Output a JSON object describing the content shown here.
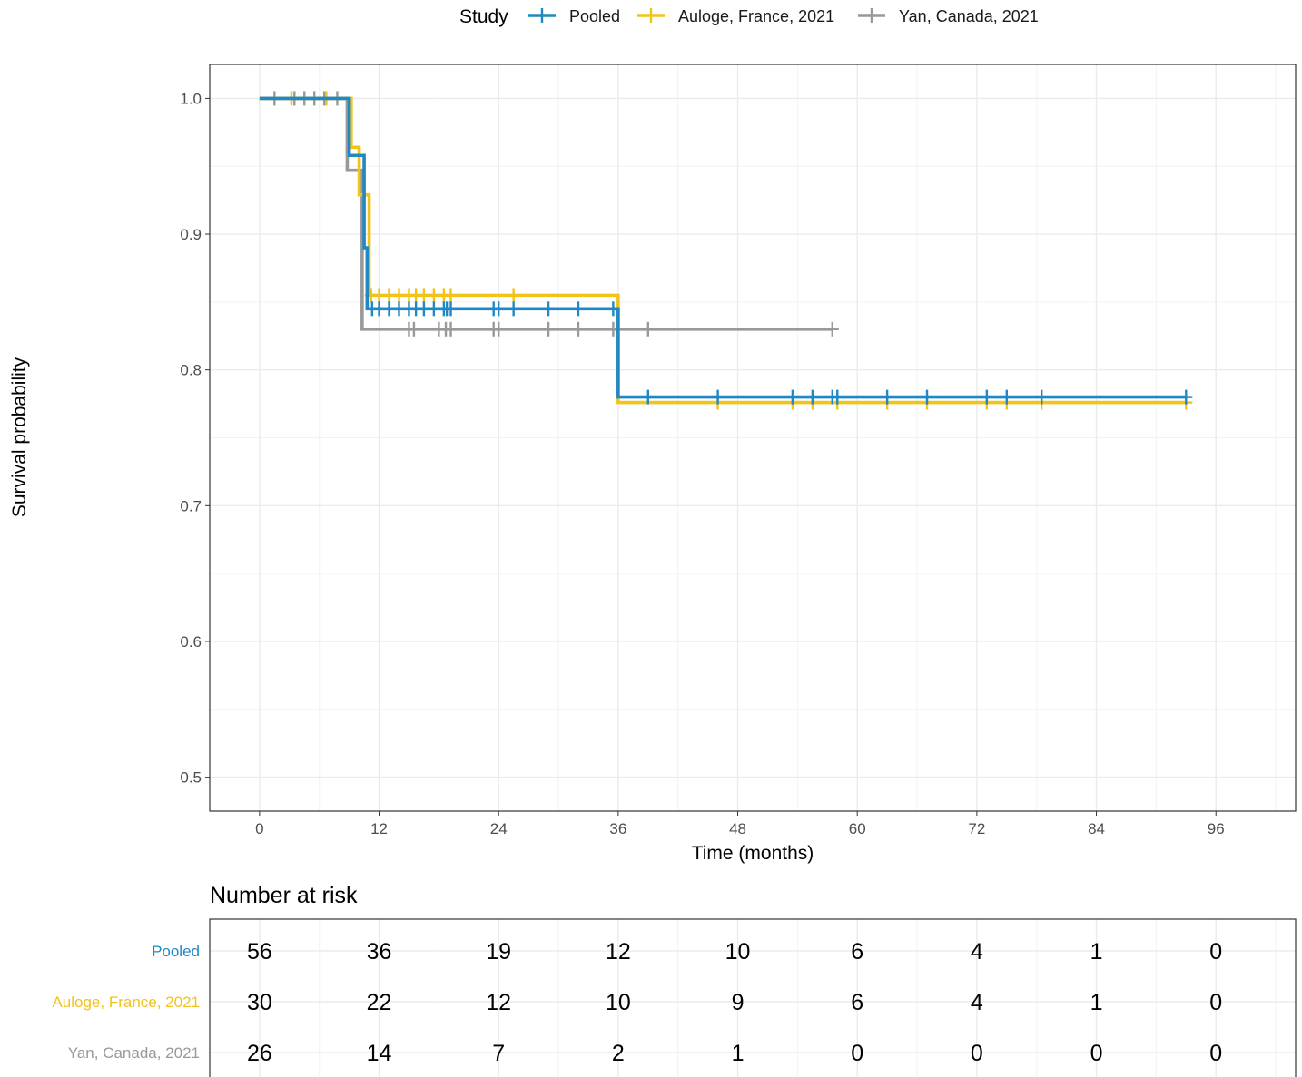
{
  "chart_data": {
    "type": "line",
    "subtype": "kaplan-meier",
    "title": "",
    "xlabel": "Time (months)",
    "ylabel": "Survival probability",
    "xlim": [
      -5,
      104
    ],
    "ylim": [
      0.475,
      1.025
    ],
    "x_ticks": [
      0,
      12,
      24,
      36,
      48,
      60,
      72,
      84,
      96
    ],
    "y_ticks": [
      0.5,
      0.6,
      0.7,
      0.8,
      0.9,
      1.0
    ],
    "y_tick_labels": [
      "0.5",
      "0.6",
      "0.7",
      "0.8",
      "0.9",
      "1.0"
    ],
    "grid": true,
    "legend": {
      "title": "Study",
      "position": "top"
    },
    "series": [
      {
        "name": "Pooled",
        "color": "#1f88c5",
        "steps": [
          [
            0,
            1.0
          ],
          [
            9.0,
            0.958
          ],
          [
            10.5,
            0.89
          ],
          [
            10.8,
            0.845
          ],
          [
            36,
            0.78
          ],
          [
            93,
            0.78
          ]
        ],
        "censor_times": [
          11.3,
          12,
          13,
          14,
          15,
          15.7,
          16.5,
          17.5,
          18.5,
          18.8,
          19.2,
          23.5,
          24,
          25.5,
          29,
          32,
          35.5,
          39,
          46,
          53.5,
          55.5,
          57.5,
          58,
          63,
          67,
          73,
          75,
          78.5,
          93
        ]
      },
      {
        "name": "Auloge, France, 2021",
        "color": "#f2c318",
        "steps": [
          [
            0,
            1.0
          ],
          [
            9.2,
            0.964
          ],
          [
            10.0,
            0.929
          ],
          [
            11.0,
            0.855
          ],
          [
            36,
            0.776
          ],
          [
            93,
            0.776
          ]
        ],
        "censor_times": [
          3.2,
          6.7,
          11.2,
          12,
          13,
          14,
          15,
          15.7,
          16.5,
          17.5,
          18.5,
          19.2,
          25.5,
          46,
          53.5,
          55.5,
          58,
          63,
          67,
          73,
          75,
          78.5,
          93
        ]
      },
      {
        "name": "Yan, Canada, 2021",
        "color": "#999999",
        "steps": [
          [
            0,
            1.0
          ],
          [
            8.8,
            0.947
          ],
          [
            10.3,
            0.83
          ],
          [
            57.5,
            0.83
          ]
        ],
        "censor_times": [
          1.5,
          3.5,
          4.5,
          5.5,
          6.5,
          7.8,
          10.0,
          15,
          15.5,
          18,
          18.7,
          19.2,
          23.5,
          24,
          29,
          32,
          35.5,
          39,
          57.5
        ]
      }
    ],
    "risk_table": {
      "title": "Number at risk",
      "times": [
        0,
        12,
        24,
        36,
        48,
        60,
        72,
        84,
        96
      ],
      "rows": [
        {
          "label": "Pooled",
          "color": "#1f88c5",
          "values": [
            "56",
            "36",
            "19",
            "12",
            "10",
            "6",
            "4",
            "1",
            "0"
          ]
        },
        {
          "label": "Auloge, France, 2021",
          "color": "#f2c318",
          "values": [
            "30",
            "22",
            "12",
            "10",
            "9",
            "6",
            "4",
            "1",
            "0"
          ]
        },
        {
          "label": "Yan, Canada, 2021",
          "color": "#999999",
          "values": [
            "26",
            "14",
            "7",
            "2",
            "1",
            "0",
            "0",
            "0",
            "0"
          ]
        }
      ]
    }
  }
}
